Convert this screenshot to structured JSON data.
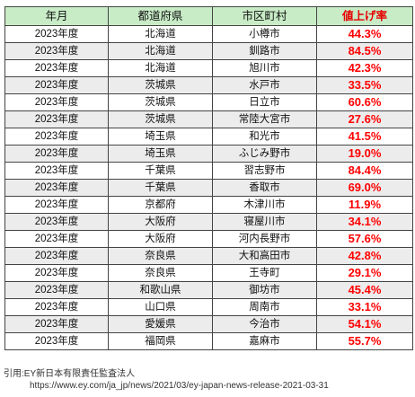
{
  "table": {
    "headers": [
      "年月",
      "都道府県",
      "市区町村",
      "値上げ率"
    ],
    "rows": [
      {
        "year": "2023年度",
        "prefecture": "北海道",
        "city": "小樽市",
        "rate": "44.3%"
      },
      {
        "year": "2023年度",
        "prefecture": "北海道",
        "city": "釧路市",
        "rate": "84.5%"
      },
      {
        "year": "2023年度",
        "prefecture": "北海道",
        "city": "旭川市",
        "rate": "42.3%"
      },
      {
        "year": "2023年度",
        "prefecture": "茨城県",
        "city": "水戸市",
        "rate": "33.5%"
      },
      {
        "year": "2023年度",
        "prefecture": "茨城県",
        "city": "日立市",
        "rate": "60.6%"
      },
      {
        "year": "2023年度",
        "prefecture": "茨城県",
        "city": "常陸大宮市",
        "rate": "27.6%"
      },
      {
        "year": "2023年度",
        "prefecture": "埼玉県",
        "city": "和光市",
        "rate": "41.5%"
      },
      {
        "year": "2023年度",
        "prefecture": "埼玉県",
        "city": "ふじみ野市",
        "rate": "19.0%"
      },
      {
        "year": "2023年度",
        "prefecture": "千葉県",
        "city": "習志野市",
        "rate": "84.4%"
      },
      {
        "year": "2023年度",
        "prefecture": "千葉県",
        "city": "香取市",
        "rate": "69.0%"
      },
      {
        "year": "2023年度",
        "prefecture": "京都府",
        "city": "木津川市",
        "rate": "11.9%"
      },
      {
        "year": "2023年度",
        "prefecture": "大阪府",
        "city": "寝屋川市",
        "rate": "34.1%"
      },
      {
        "year": "2023年度",
        "prefecture": "大阪府",
        "city": "河内長野市",
        "rate": "57.6%"
      },
      {
        "year": "2023年度",
        "prefecture": "奈良県",
        "city": "大和高田市",
        "rate": "42.8%"
      },
      {
        "year": "2023年度",
        "prefecture": "奈良県",
        "city": "王寺町",
        "rate": "29.1%"
      },
      {
        "year": "2023年度",
        "prefecture": "和歌山県",
        "city": "御坊市",
        "rate": "45.4%"
      },
      {
        "year": "2023年度",
        "prefecture": "山口県",
        "city": "周南市",
        "rate": "33.1%"
      },
      {
        "year": "2023年度",
        "prefecture": "愛媛県",
        "city": "今治市",
        "rate": "54.1%"
      },
      {
        "year": "2023年度",
        "prefecture": "福岡県",
        "city": "嘉麻市",
        "rate": "55.7%"
      }
    ]
  },
  "citation": {
    "source": "引用:EY新日本有限責任監査法人",
    "url": "https://www.ey.com/ja_jp/news/2021/03/ey-japan-news-release-2021-03-31"
  },
  "colors": {
    "header_bg": "#c8ecc6",
    "rate_text": "#ff0000",
    "stripe": "#ececec"
  }
}
